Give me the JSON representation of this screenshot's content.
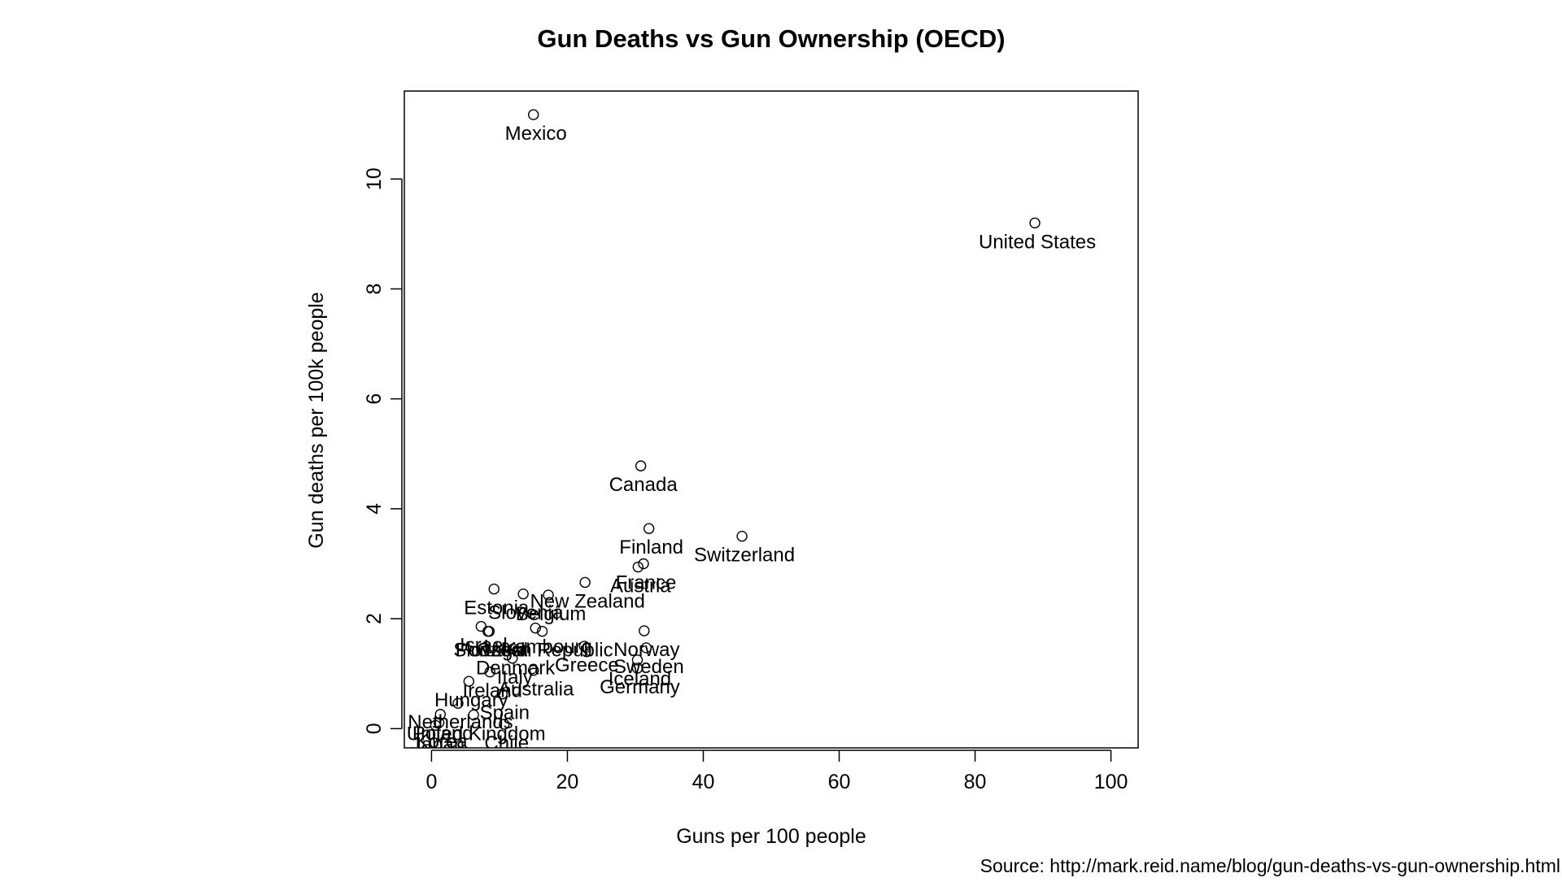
{
  "chart_data": {
    "type": "scatter",
    "title": "Gun Deaths vs Gun Ownership (OECD)",
    "xlabel": "Guns per 100 people",
    "ylabel": "Gun deaths per 100k people",
    "xlim": [
      -4,
      104
    ],
    "ylim": [
      -0.35,
      11.6
    ],
    "xticks": [
      0,
      20,
      40,
      60,
      80,
      100
    ],
    "yticks": [
      0,
      2,
      4,
      6,
      8,
      10
    ],
    "grid": false,
    "marker": "open-circle",
    "points": [
      {
        "label": "Mexico",
        "x": 15.0,
        "y": 11.17
      },
      {
        "label": "United States",
        "x": 88.8,
        "y": 9.2
      },
      {
        "label": "Canada",
        "x": 30.8,
        "y": 4.78
      },
      {
        "label": "Finland",
        "x": 32.0,
        "y": 3.64
      },
      {
        "label": "Switzerland",
        "x": 45.7,
        "y": 3.5
      },
      {
        "label": "France",
        "x": 31.2,
        "y": 3.0
      },
      {
        "label": "Austria",
        "x": 30.4,
        "y": 2.94
      },
      {
        "label": "New Zealand",
        "x": 22.6,
        "y": 2.66
      },
      {
        "label": "Estonia",
        "x": 9.2,
        "y": 2.54
      },
      {
        "label": "Slovenia",
        "x": 13.5,
        "y": 2.45
      },
      {
        "label": "Belgium",
        "x": 17.2,
        "y": 2.43
      },
      {
        "label": "Israel",
        "x": 7.3,
        "y": 1.86
      },
      {
        "label": "Slovakia",
        "x": 8.3,
        "y": 1.77
      },
      {
        "label": "Luxembourg",
        "x": 15.3,
        "y": 1.83
      },
      {
        "label": "Czech Republic",
        "x": 16.3,
        "y": 1.77
      },
      {
        "label": "Norway",
        "x": 31.3,
        "y": 1.78
      },
      {
        "label": "Portugal",
        "x": 8.5,
        "y": 1.77
      },
      {
        "label": "Denmark",
        "x": 12.0,
        "y": 1.45
      },
      {
        "label": "Greece",
        "x": 22.5,
        "y": 1.5
      },
      {
        "label": "Sweden",
        "x": 31.6,
        "y": 1.47
      },
      {
        "label": "Iceland",
        "x": 30.3,
        "y": 1.25
      },
      {
        "label": "Germany",
        "x": 30.3,
        "y": 1.1
      },
      {
        "label": "Italy",
        "x": 11.9,
        "y": 1.28
      },
      {
        "label": "Australia",
        "x": 15.0,
        "y": 1.06
      },
      {
        "label": "Ireland",
        "x": 8.6,
        "y": 1.03
      },
      {
        "label": "Hungary",
        "x": 5.5,
        "y": 0.86
      },
      {
        "label": "Spain",
        "x": 10.4,
        "y": 0.63
      },
      {
        "label": "Netherlands",
        "x": 3.9,
        "y": 0.46
      },
      {
        "label": "Poland",
        "x": 1.3,
        "y": 0.26
      },
      {
        "label": "Korea",
        "x": 1.1,
        "y": 0.11
      },
      {
        "label": "United Kingdom",
        "x": 6.2,
        "y": 0.25
      },
      {
        "label": "Chile",
        "x": 10.7,
        "y": 0.08
      },
      {
        "label": "Japan",
        "x": 0.6,
        "y": 0.06
      }
    ]
  },
  "source_text": "Source: http://mark.reid.name/blog/gun-deaths-vs-gun-ownership.html"
}
